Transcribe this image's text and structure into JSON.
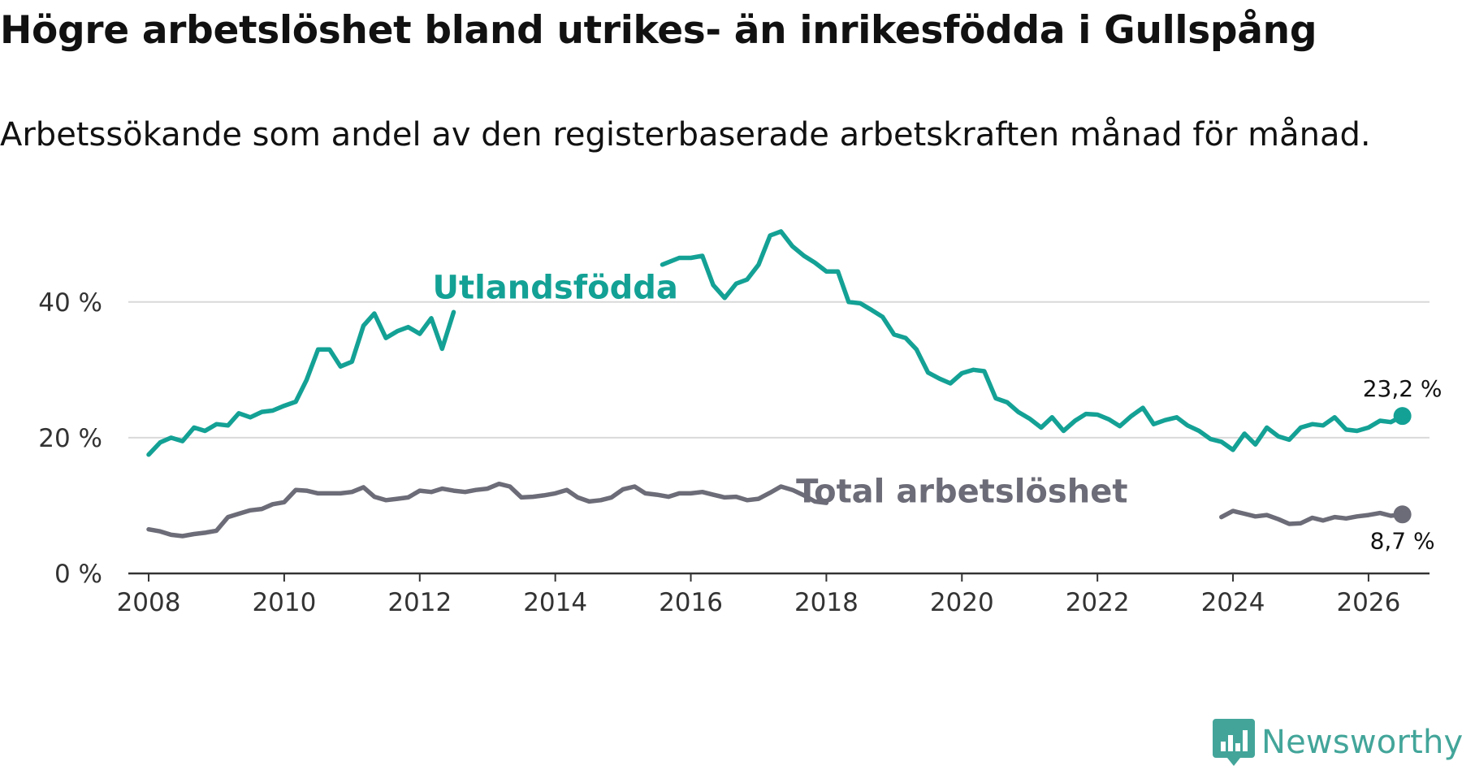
{
  "title": "Högre arbetslöshet bland utrikes- än inrikesfödda i Gullspång",
  "subtitle": "Arbetssökande som andel av den registerbaserade arbetskraften månad för månad.",
  "logo": {
    "text": "Newsworthy",
    "icon": "newsworthy-logo-icon",
    "color": "#43a59a"
  },
  "chart_data": {
    "type": "line",
    "title": "Högre arbetslöshet bland utrikes- än inrikesfödda i Gullspång",
    "xlabel": "",
    "ylabel": "",
    "xlim": [
      2007.7,
      2026.9
    ],
    "ylim": [
      0,
      45
    ],
    "grid": true,
    "y_ticks": [
      0,
      20,
      40
    ],
    "y_tick_labels": [
      "0 %",
      "20 %",
      "40 %"
    ],
    "x_ticks": [
      2008,
      2010,
      2012,
      2014,
      2016,
      2018,
      2020,
      2022,
      2024,
      2026
    ],
    "x_tick_labels": [
      "2008",
      "2010",
      "2012",
      "2014",
      "2016",
      "2018",
      "2020",
      "2022",
      "2024",
      "2026"
    ],
    "series": [
      {
        "name": "Utlandsfödda",
        "color": "#14a195",
        "end_value_label": "23,2 %",
        "points": [
          [
            2008.0,
            17.5
          ],
          [
            2008.17,
            19.3
          ],
          [
            2008.33,
            20.0
          ],
          [
            2008.5,
            19.5
          ],
          [
            2008.67,
            21.5
          ],
          [
            2008.83,
            21.0
          ],
          [
            2009.0,
            22.0
          ],
          [
            2009.17,
            21.8
          ],
          [
            2009.33,
            23.6
          ],
          [
            2009.5,
            23.0
          ],
          [
            2009.67,
            23.8
          ],
          [
            2009.83,
            24.0
          ],
          [
            2010.0,
            24.7
          ],
          [
            2010.17,
            25.3
          ],
          [
            2010.33,
            28.5
          ],
          [
            2010.5,
            33.0
          ],
          [
            2010.67,
            33.0
          ],
          [
            2010.83,
            30.5
          ],
          [
            2011.0,
            31.2
          ],
          [
            2011.17,
            36.5
          ],
          [
            2011.33,
            38.3
          ],
          [
            2011.5,
            34.7
          ],
          [
            2011.67,
            35.7
          ],
          [
            2011.83,
            36.3
          ],
          [
            2012.0,
            35.3
          ],
          [
            2012.17,
            37.6
          ],
          [
            2012.33,
            33.1
          ],
          [
            2012.5,
            38.5
          ],
          [
            2015.58,
            45.5
          ],
          [
            2015.83,
            46.5
          ],
          [
            2016.0,
            46.5
          ],
          [
            2016.17,
            46.8
          ],
          [
            2016.33,
            42.5
          ],
          [
            2016.5,
            40.6
          ],
          [
            2016.67,
            42.7
          ],
          [
            2016.83,
            43.3
          ],
          [
            2017.0,
            45.5
          ],
          [
            2017.17,
            49.8
          ],
          [
            2017.33,
            50.4
          ],
          [
            2017.5,
            48.2
          ],
          [
            2017.67,
            46.8
          ],
          [
            2017.83,
            45.8
          ],
          [
            2018.0,
            44.5
          ],
          [
            2018.17,
            44.5
          ],
          [
            2018.33,
            40.0
          ],
          [
            2018.5,
            39.8
          ],
          [
            2018.67,
            38.8
          ],
          [
            2018.83,
            37.8
          ],
          [
            2019.0,
            35.2
          ],
          [
            2019.17,
            34.7
          ],
          [
            2019.33,
            33.0
          ],
          [
            2019.5,
            29.6
          ],
          [
            2019.67,
            28.7
          ],
          [
            2019.83,
            28.0
          ],
          [
            2020.0,
            29.5
          ],
          [
            2020.17,
            30.0
          ],
          [
            2020.33,
            29.8
          ],
          [
            2020.5,
            25.8
          ],
          [
            2020.67,
            25.2
          ],
          [
            2020.83,
            23.8
          ],
          [
            2021.0,
            22.8
          ],
          [
            2021.17,
            21.5
          ],
          [
            2021.33,
            23.0
          ],
          [
            2021.5,
            21.0
          ],
          [
            2021.67,
            22.5
          ],
          [
            2021.83,
            23.5
          ],
          [
            2022.0,
            23.4
          ],
          [
            2022.17,
            22.7
          ],
          [
            2022.33,
            21.7
          ],
          [
            2022.5,
            23.2
          ],
          [
            2022.67,
            24.4
          ],
          [
            2022.83,
            22.0
          ],
          [
            2023.0,
            22.6
          ],
          [
            2023.17,
            23.0
          ],
          [
            2023.33,
            21.8
          ],
          [
            2023.5,
            21.0
          ],
          [
            2023.67,
            19.8
          ],
          [
            2023.83,
            19.4
          ],
          [
            2024.0,
            18.2
          ],
          [
            2024.17,
            20.6
          ],
          [
            2024.33,
            19.0
          ],
          [
            2024.5,
            21.5
          ],
          [
            2024.67,
            20.2
          ],
          [
            2024.83,
            19.7
          ],
          [
            2025.0,
            21.5
          ],
          [
            2025.17,
            22.0
          ],
          [
            2025.33,
            21.8
          ],
          [
            2025.5,
            23.0
          ],
          [
            2025.67,
            21.2
          ],
          [
            2025.83,
            21.0
          ],
          [
            2026.0,
            21.5
          ],
          [
            2026.17,
            22.5
          ],
          [
            2026.33,
            22.3
          ],
          [
            2026.5,
            23.2
          ]
        ]
      },
      {
        "name": "Total arbetslöshet",
        "color": "#6c6c78",
        "end_value_label": "8,7 %",
        "points": [
          [
            2008.0,
            6.5
          ],
          [
            2008.17,
            6.2
          ],
          [
            2008.33,
            5.7
          ],
          [
            2008.5,
            5.5
          ],
          [
            2008.67,
            5.8
          ],
          [
            2008.83,
            6.0
          ],
          [
            2009.0,
            6.3
          ],
          [
            2009.17,
            8.3
          ],
          [
            2009.33,
            8.8
          ],
          [
            2009.5,
            9.3
          ],
          [
            2009.67,
            9.5
          ],
          [
            2009.83,
            10.2
          ],
          [
            2010.0,
            10.5
          ],
          [
            2010.17,
            12.3
          ],
          [
            2010.33,
            12.2
          ],
          [
            2010.5,
            11.8
          ],
          [
            2010.67,
            11.8
          ],
          [
            2010.83,
            11.8
          ],
          [
            2011.0,
            12.0
          ],
          [
            2011.17,
            12.7
          ],
          [
            2011.33,
            11.3
          ],
          [
            2011.5,
            10.8
          ],
          [
            2011.67,
            11.0
          ],
          [
            2011.83,
            11.2
          ],
          [
            2012.0,
            12.2
          ],
          [
            2012.17,
            12.0
          ],
          [
            2012.33,
            12.5
          ],
          [
            2012.5,
            12.2
          ],
          [
            2012.67,
            12.0
          ],
          [
            2012.83,
            12.3
          ],
          [
            2013.0,
            12.5
          ],
          [
            2013.17,
            13.2
          ],
          [
            2013.33,
            12.8
          ],
          [
            2013.5,
            11.2
          ],
          [
            2013.67,
            11.3
          ],
          [
            2013.83,
            11.5
          ],
          [
            2014.0,
            11.8
          ],
          [
            2014.17,
            12.3
          ],
          [
            2014.33,
            11.2
          ],
          [
            2014.5,
            10.6
          ],
          [
            2014.67,
            10.8
          ],
          [
            2014.83,
            11.2
          ],
          [
            2015.0,
            12.4
          ],
          [
            2015.17,
            12.8
          ],
          [
            2015.33,
            11.8
          ],
          [
            2015.5,
            11.6
          ],
          [
            2015.67,
            11.3
          ],
          [
            2015.83,
            11.8
          ],
          [
            2016.0,
            11.8
          ],
          [
            2016.17,
            12.0
          ],
          [
            2016.33,
            11.6
          ],
          [
            2016.5,
            11.2
          ],
          [
            2016.67,
            11.3
          ],
          [
            2016.83,
            10.8
          ],
          [
            2017.0,
            11.0
          ],
          [
            2017.17,
            11.9
          ],
          [
            2017.33,
            12.8
          ],
          [
            2017.5,
            12.3
          ],
          [
            2017.67,
            11.5
          ],
          [
            2017.83,
            10.6
          ],
          [
            2018.0,
            10.4
          ],
          [
            2023.83,
            8.3
          ],
          [
            2024.0,
            9.2
          ],
          [
            2024.17,
            8.8
          ],
          [
            2024.33,
            8.4
          ],
          [
            2024.5,
            8.6
          ],
          [
            2024.67,
            8.0
          ],
          [
            2024.83,
            7.3
          ],
          [
            2025.0,
            7.4
          ],
          [
            2025.17,
            8.2
          ],
          [
            2025.33,
            7.8
          ],
          [
            2025.5,
            8.3
          ],
          [
            2025.67,
            8.1
          ],
          [
            2025.83,
            8.4
          ],
          [
            2026.0,
            8.6
          ],
          [
            2026.17,
            8.9
          ],
          [
            2026.33,
            8.5
          ],
          [
            2026.5,
            8.7
          ]
        ]
      }
    ],
    "annotations": [
      {
        "text": "Utlandsfödda",
        "series": "Utlandsfödda",
        "x": 2014.0,
        "y": 40.5
      },
      {
        "text": "Total arbetslöshet",
        "series": "Total arbetslöshet",
        "x": 2020.0,
        "y": 10.5
      }
    ]
  }
}
